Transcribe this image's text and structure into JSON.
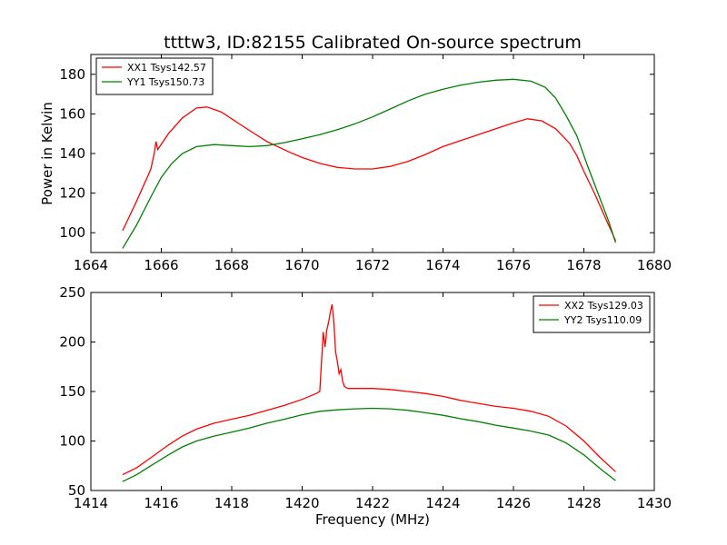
{
  "figure": {
    "title": "ttttw3, ID:82155 Calibrated On-source spectrum"
  },
  "chart_data": [
    {
      "type": "line",
      "title": "ttttw3, ID:82155 Calibrated On-source spectrum",
      "xlabel": "",
      "ylabel": "Power in Kelvin",
      "xlim": [
        1664,
        1680
      ],
      "ylim": [
        90,
        190
      ],
      "xticks": [
        1664,
        1666,
        1668,
        1670,
        1672,
        1674,
        1676,
        1678,
        1680
      ],
      "yticks": [
        100,
        120,
        140,
        160,
        180
      ],
      "legend": "top-left",
      "grid": false,
      "series": [
        {
          "name": "XX1 Tsys142.57",
          "color": "#ff0000",
          "points": [
            [
              1664.9,
              101
            ],
            [
              1665.3,
              116
            ],
            [
              1665.7,
              132
            ],
            [
              1665.8,
              140
            ],
            [
              1665.85,
              146
            ],
            [
              1665.9,
              142
            ],
            [
              1666.2,
              150
            ],
            [
              1666.6,
              158
            ],
            [
              1667.0,
              163
            ],
            [
              1667.3,
              163.5
            ],
            [
              1667.7,
              161
            ],
            [
              1668.3,
              154
            ],
            [
              1669.0,
              146
            ],
            [
              1669.6,
              141
            ],
            [
              1670.0,
              138
            ],
            [
              1670.5,
              135
            ],
            [
              1671.0,
              133
            ],
            [
              1671.5,
              132.2
            ],
            [
              1672.0,
              132.2
            ],
            [
              1672.5,
              133.5
            ],
            [
              1673.0,
              136
            ],
            [
              1673.5,
              139.5
            ],
            [
              1674.0,
              143.5
            ],
            [
              1674.5,
              146.5
            ],
            [
              1675.0,
              149.5
            ],
            [
              1675.5,
              152.5
            ],
            [
              1676.0,
              155.5
            ],
            [
              1676.4,
              157.5
            ],
            [
              1676.8,
              156.5
            ],
            [
              1677.2,
              152.5
            ],
            [
              1677.6,
              145
            ],
            [
              1677.8,
              139
            ],
            [
              1678.0,
              131
            ],
            [
              1678.3,
              120
            ],
            [
              1678.6,
              108
            ],
            [
              1678.9,
              96
            ]
          ]
        },
        {
          "name": "YY1 Tsys150.73",
          "color": "#008000",
          "points": [
            [
              1664.9,
              92
            ],
            [
              1665.3,
              104
            ],
            [
              1665.7,
              118
            ],
            [
              1666.0,
              128
            ],
            [
              1666.3,
              135
            ],
            [
              1666.6,
              140
            ],
            [
              1667.0,
              143.5
            ],
            [
              1667.5,
              144.5
            ],
            [
              1668.0,
              144
            ],
            [
              1668.5,
              143.5
            ],
            [
              1669.0,
              144
            ],
            [
              1669.5,
              145.5
            ],
            [
              1670.0,
              147.5
            ],
            [
              1670.5,
              149.5
            ],
            [
              1671.0,
              152
            ],
            [
              1671.5,
              155
            ],
            [
              1672.0,
              158.5
            ],
            [
              1672.5,
              162.5
            ],
            [
              1673.0,
              166.5
            ],
            [
              1673.5,
              170
            ],
            [
              1674.0,
              172.5
            ],
            [
              1674.5,
              174.5
            ],
            [
              1675.0,
              176
            ],
            [
              1675.5,
              177
            ],
            [
              1676.0,
              177.5
            ],
            [
              1676.5,
              176.5
            ],
            [
              1676.9,
              173.5
            ],
            [
              1677.2,
              168
            ],
            [
              1677.5,
              159
            ],
            [
              1677.8,
              149
            ],
            [
              1678.1,
              134
            ],
            [
              1678.4,
              120
            ],
            [
              1678.7,
              106
            ],
            [
              1678.9,
              95
            ]
          ]
        }
      ]
    },
    {
      "type": "line",
      "title": "",
      "xlabel": "Frequency (MHz)",
      "ylabel": "",
      "xlim": [
        1414,
        1430
      ],
      "ylim": [
        50,
        250
      ],
      "xticks": [
        1414,
        1416,
        1418,
        1420,
        1422,
        1424,
        1426,
        1428,
        1430
      ],
      "yticks": [
        50,
        100,
        150,
        200,
        250
      ],
      "legend": "top-right",
      "grid": false,
      "series": [
        {
          "name": "XX2 Tsys129.03",
          "color": "#ff0000",
          "points": [
            [
              1414.9,
              66
            ],
            [
              1415.3,
              73
            ],
            [
              1415.7,
              83
            ],
            [
              1416.2,
              96
            ],
            [
              1416.6,
              105
            ],
            [
              1417.0,
              112
            ],
            [
              1417.5,
              118
            ],
            [
              1418.0,
              122
            ],
            [
              1418.5,
              126
            ],
            [
              1419.0,
              131
            ],
            [
              1419.5,
              136
            ],
            [
              1420.0,
              142
            ],
            [
              1420.4,
              148
            ],
            [
              1420.5,
              150
            ],
            [
              1420.55,
              180
            ],
            [
              1420.6,
              210
            ],
            [
              1420.65,
              195
            ],
            [
              1420.7,
              212
            ],
            [
              1420.75,
              220
            ],
            [
              1420.8,
              230
            ],
            [
              1420.85,
              238
            ],
            [
              1420.9,
              220
            ],
            [
              1420.95,
              190
            ],
            [
              1421.0,
              180
            ],
            [
              1421.05,
              168
            ],
            [
              1421.1,
              172
            ],
            [
              1421.15,
              160
            ],
            [
              1421.2,
              155
            ],
            [
              1421.3,
              153
            ],
            [
              1421.5,
              153
            ],
            [
              1422.0,
              153
            ],
            [
              1422.5,
              152
            ],
            [
              1423.0,
              150
            ],
            [
              1423.5,
              148
            ],
            [
              1424.0,
              145
            ],
            [
              1424.5,
              141
            ],
            [
              1425.0,
              138
            ],
            [
              1425.5,
              135
            ],
            [
              1426.0,
              133
            ],
            [
              1426.5,
              130
            ],
            [
              1427.0,
              125
            ],
            [
              1427.5,
              115
            ],
            [
              1428.0,
              100
            ],
            [
              1428.5,
              82
            ],
            [
              1428.9,
              69
            ]
          ]
        },
        {
          "name": "YY2 Tsys110.09",
          "color": "#008000",
          "points": [
            [
              1414.9,
              59
            ],
            [
              1415.3,
              66
            ],
            [
              1415.7,
              75
            ],
            [
              1416.2,
              86
            ],
            [
              1416.6,
              94
            ],
            [
              1417.0,
              100
            ],
            [
              1417.5,
              105
            ],
            [
              1418.0,
              109
            ],
            [
              1418.5,
              113
            ],
            [
              1419.0,
              118
            ],
            [
              1419.5,
              122
            ],
            [
              1420.0,
              126.5
            ],
            [
              1420.5,
              130
            ],
            [
              1421.0,
              131.5
            ],
            [
              1421.5,
              132.5
            ],
            [
              1422.0,
              133
            ],
            [
              1422.5,
              132.5
            ],
            [
              1423.0,
              131
            ],
            [
              1423.5,
              128.5
            ],
            [
              1424.0,
              126
            ],
            [
              1424.5,
              122.5
            ],
            [
              1425.0,
              119.5
            ],
            [
              1425.5,
              116
            ],
            [
              1426.0,
              113
            ],
            [
              1426.5,
              110
            ],
            [
              1427.0,
              106
            ],
            [
              1427.5,
              98
            ],
            [
              1428.0,
              86
            ],
            [
              1428.5,
              71
            ],
            [
              1428.9,
              60
            ]
          ]
        }
      ]
    }
  ]
}
